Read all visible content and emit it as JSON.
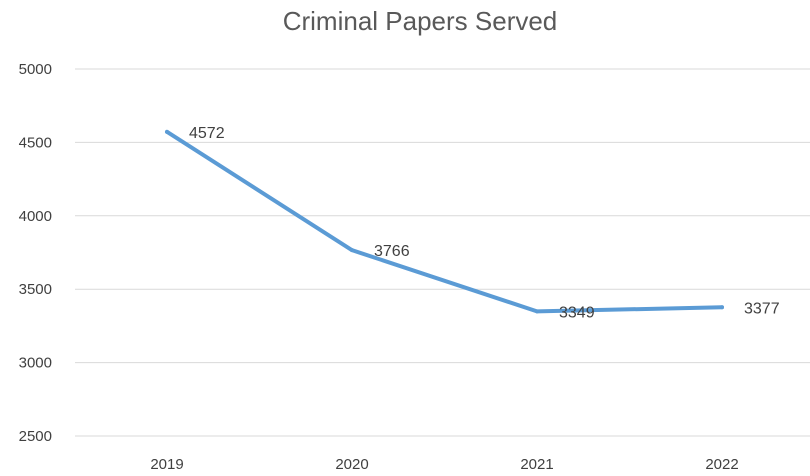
{
  "chart_data": {
    "type": "line",
    "title": "Criminal Papers Served",
    "xlabel": "",
    "ylabel": "",
    "categories": [
      "2019",
      "2020",
      "2021",
      "2022"
    ],
    "series": [
      {
        "values": [
          4572,
          3766,
          3349,
          3377
        ]
      }
    ],
    "ylim": [
      2500,
      5000
    ],
    "yticks": [
      2500,
      3000,
      3500,
      4000,
      4500,
      5000
    ],
    "grid": true,
    "data_labels": true,
    "legend": "none",
    "line_color": "#5B9BD5"
  }
}
